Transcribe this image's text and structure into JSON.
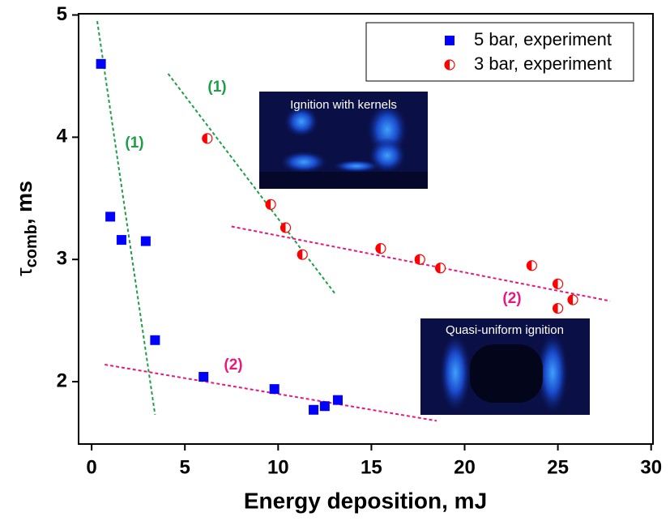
{
  "chart_data": {
    "type": "scatter",
    "xlabel": "Energy deposition, mJ",
    "ylabel": {
      "symbol": "τ",
      "subscript": "comb",
      "unit": ", ms"
    },
    "xlim": [
      -0.7,
      30.1
    ],
    "ylim": [
      1.49,
      5.01
    ],
    "xticks": [
      0,
      5,
      10,
      15,
      20,
      25,
      30
    ],
    "yticks": [
      2,
      3,
      4,
      5
    ],
    "legend": "upper right",
    "series": [
      {
        "name": "5 bar, experiment",
        "color": "#0000ff",
        "marker": "square",
        "x": [
          0.5,
          1.0,
          1.6,
          2.9,
          3.4,
          6.0,
          9.8,
          11.9,
          12.5,
          13.2
        ],
        "values": [
          4.6,
          3.35,
          3.16,
          3.15,
          2.34,
          2.04,
          1.94,
          1.77,
          1.8,
          1.85
        ]
      },
      {
        "name": "3 bar, experiment",
        "color": "#ff0000",
        "marker": "half-circle",
        "x": [
          6.2,
          9.6,
          10.4,
          11.3,
          15.5,
          17.6,
          18.7,
          23.6,
          25.0,
          25.0,
          25.8
        ],
        "values": [
          3.99,
          3.45,
          3.26,
          3.04,
          3.09,
          3.0,
          2.93,
          2.95,
          2.8,
          2.6,
          2.67
        ]
      }
    ],
    "fit_lines": [
      {
        "label": "(1)",
        "color": "#1f9e4a",
        "x": [
          0.3,
          3.4
        ],
        "values": [
          4.95,
          1.73
        ]
      },
      {
        "label": "(1)",
        "color": "#1f9e4a",
        "x": [
          4.1,
          13.1
        ],
        "values": [
          4.52,
          2.71
        ]
      },
      {
        "label": "(2)",
        "color": "#e6197f",
        "x": [
          0.7,
          18.5
        ],
        "values": [
          2.14,
          1.68
        ]
      },
      {
        "label": "(2)",
        "color": "#e6197f",
        "x": [
          7.5,
          27.8
        ],
        "values": [
          3.27,
          2.66
        ]
      }
    ],
    "insets": [
      {
        "label": "Ignition with kernels"
      },
      {
        "label": "Quasi-uniform ignition"
      }
    ]
  }
}
